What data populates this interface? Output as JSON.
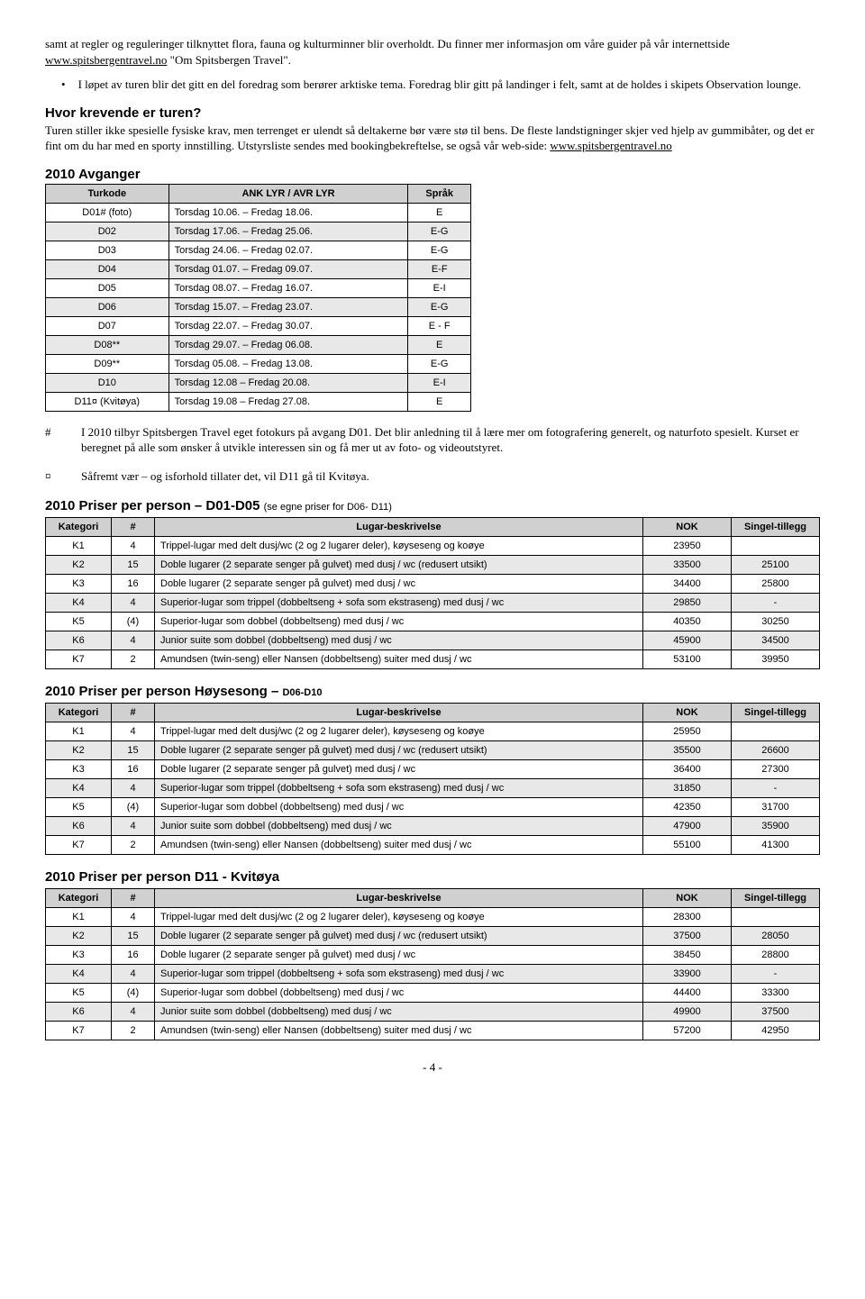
{
  "para1_a": "samt at regler og reguleringer tilknyttet flora, fauna og kulturminner blir overholdt. Du finner mer informasjon om våre guider på vår internettside ",
  "para1_link": "www.spitsbergentravel.no",
  "para1_b": " \"Om Spitsbergen Travel\".",
  "bullet1": "I løpet av turen blir det gitt en del foredrag som berører arktiske tema. Foredrag blir gitt på landinger i felt, samt at de holdes i skipets Observation lounge.",
  "heading_krevende": "Hvor krevende er turen?",
  "para2_a": "Turen stiller ikke spesielle fysiske krav, men terrenget er ulendt så deltakerne bør være stø til bens. De fleste landstigninger skjer ved hjelp av gummibåter, og det er fint om du har med en sporty innstilling. Utstyrsliste sendes med bookingbekreftelse, se også vår web-side: ",
  "para2_link": "www.spitsbergentravel.no",
  "heading_avganger": "2010 Avganger",
  "dep_headers": {
    "c1": "Turkode",
    "c2": "ANK LYR / AVR LYR",
    "c3": "Språk"
  },
  "departures": [
    {
      "code": "D01# (foto)",
      "dates": "Torsdag 10.06. – Fredag 18.06.",
      "lang": "E",
      "shaded": false
    },
    {
      "code": "D02",
      "dates": "Torsdag 17.06. – Fredag 25.06.",
      "lang": "E-G",
      "shaded": true
    },
    {
      "code": "D03",
      "dates": "Torsdag 24.06. – Fredag 02.07.",
      "lang": "E-G",
      "shaded": false
    },
    {
      "code": "D04",
      "dates": "Torsdag 01.07. – Fredag 09.07.",
      "lang": "E-F",
      "shaded": true
    },
    {
      "code": "D05",
      "dates": "Torsdag 08.07. – Fredag 16.07.",
      "lang": "E-I",
      "shaded": false
    },
    {
      "code": "D06",
      "dates": "Torsdag 15.07. – Fredag 23.07.",
      "lang": "E-G",
      "shaded": true
    },
    {
      "code": "D07",
      "dates": "Torsdag 22.07. – Fredag 30.07.",
      "lang": "E - F",
      "shaded": false
    },
    {
      "code": "D08**",
      "dates": "Torsdag 29.07. – Fredag 06.08.",
      "lang": "E",
      "shaded": true
    },
    {
      "code": "D09**",
      "dates": "Torsdag 05.08. – Fredag 13.08.",
      "lang": "E-G",
      "shaded": false
    },
    {
      "code": "D10",
      "dates": "Torsdag 12.08 – Fredag 20.08.",
      "lang": "E-I",
      "shaded": true
    },
    {
      "code": "D11¤ (Kvitøya)",
      "dates": "Torsdag 19.08 – Fredag 27.08.",
      "lang": "E",
      "shaded": false
    }
  ],
  "note_hash_sym": "#",
  "note_hash": "I 2010 tilbyr Spitsbergen Travel eget fotokurs på avgang D01. Det blir anledning til å lære mer om fotografering generelt, og naturfoto spesielt. Kurset er beregnet på alle som ønsker å utvikle interessen sin og få mer ut av foto- og videoutstyret.",
  "note_curr_sym": "¤",
  "note_curr": "Såfremt vær – og isforhold tillater det, vil D11 gå til Kvitøya.",
  "price_headers": {
    "c1": "Kategori",
    "c2": "#",
    "c3": "Lugar-beskrivelse",
    "c4": "NOK",
    "c5": "Singel-tillegg"
  },
  "price1_title_a": "2010 Priser per person – D01-D05 ",
  "price1_title_b": "(se egne priser for D06- D11)",
  "price1": [
    {
      "k": "K1",
      "n": "4",
      "d": "Trippel-lugar med delt dusj/wc (2 og 2 lugarer deler), køyseseng og koøye",
      "p": "23950",
      "s": ""
    },
    {
      "k": "K2",
      "n": "15",
      "d": "Doble lugarer (2 separate senger på gulvet) med dusj / wc (redusert utsikt)",
      "p": "33500",
      "s": "25100",
      "shaded": true
    },
    {
      "k": "K3",
      "n": "16",
      "d": "Doble lugarer (2 separate senger på gulvet) med dusj / wc",
      "p": "34400",
      "s": "25800"
    },
    {
      "k": "K4",
      "n": "4",
      "d": "Superior-lugar som trippel (dobbeltseng + sofa som ekstraseng) med dusj / wc",
      "p": "29850",
      "s": "-",
      "shaded": true
    },
    {
      "k": "K5",
      "n": "(4)",
      "d": "Superior-lugar som dobbel (dobbeltseng) med dusj / wc",
      "p": "40350",
      "s": "30250"
    },
    {
      "k": "K6",
      "n": "4",
      "d": "Junior suite som dobbel (dobbeltseng) med dusj / wc",
      "p": "45900",
      "s": "34500",
      "shaded": true
    },
    {
      "k": "K7",
      "n": "2",
      "d": "Amundsen (twin-seng) eller Nansen (dobbeltseng) suiter med dusj / wc",
      "p": "53100",
      "s": "39950"
    }
  ],
  "price2_title_a": "2010 Priser per person Høysesong – ",
  "price2_title_b": "D06-D10",
  "price2": [
    {
      "k": "K1",
      "n": "4",
      "d": "Trippel-lugar med delt dusj/wc (2 og 2 lugarer deler), køyseseng og koøye",
      "p": "25950",
      "s": ""
    },
    {
      "k": "K2",
      "n": "15",
      "d": "Doble lugarer (2 separate senger på gulvet) med dusj / wc (redusert utsikt)",
      "p": "35500",
      "s": "26600",
      "shaded": true
    },
    {
      "k": "K3",
      "n": "16",
      "d": "Doble lugarer (2 separate senger på gulvet) med dusj / wc",
      "p": "36400",
      "s": "27300"
    },
    {
      "k": "K4",
      "n": "4",
      "d": "Superior-lugar som trippel (dobbeltseng + sofa som ekstraseng) med dusj / wc",
      "p": "31850",
      "s": "-",
      "shaded": true
    },
    {
      "k": "K5",
      "n": "(4)",
      "d": "Superior-lugar som dobbel (dobbeltseng) med dusj / wc",
      "p": "42350",
      "s": "31700"
    },
    {
      "k": "K6",
      "n": "4",
      "d": "Junior suite som dobbel  (dobbeltseng) med dusj / wc",
      "p": "47900",
      "s": "35900",
      "shaded": true
    },
    {
      "k": "K7",
      "n": "2",
      "d": "Amundsen (twin-seng) eller Nansen (dobbeltseng) suiter med dusj / wc",
      "p": "55100",
      "s": "41300"
    }
  ],
  "price3_title": "2010 Priser per person D11 - Kvitøya",
  "price3": [
    {
      "k": "K1",
      "n": "4",
      "d": "Trippel-lugar med delt dusj/wc (2 og 2 lugarer deler), køyseseng og koøye",
      "p": "28300",
      "s": ""
    },
    {
      "k": "K2",
      "n": "15",
      "d": "Doble lugarer (2 separate senger på gulvet) med dusj / wc (redusert utsikt)",
      "p": "37500",
      "s": "28050",
      "shaded": true
    },
    {
      "k": "K3",
      "n": "16",
      "d": "Doble lugarer (2 separate senger på gulvet) med dusj / wc",
      "p": "38450",
      "s": "28800"
    },
    {
      "k": "K4",
      "n": "4",
      "d": "Superior-lugar som trippel (dobbeltseng + sofa som ekstraseng) med dusj / wc",
      "p": "33900",
      "s": "-",
      "shaded": true
    },
    {
      "k": "K5",
      "n": "(4)",
      "d": "Superior-lugar som dobbel (dobbeltseng) med dusj / wc",
      "p": "44400",
      "s": "33300"
    },
    {
      "k": "K6",
      "n": "4",
      "d": "Junior suite som dobbel  (dobbeltseng) med dusj / wc",
      "p": "49900",
      "s": "37500",
      "shaded": true
    },
    {
      "k": "K7",
      "n": "2",
      "d": "Amundsen (twin-seng) eller Nansen (dobbeltseng) suiter med dusj / wc",
      "p": "57200",
      "s": "42950"
    }
  ],
  "footer": "- 4 -"
}
